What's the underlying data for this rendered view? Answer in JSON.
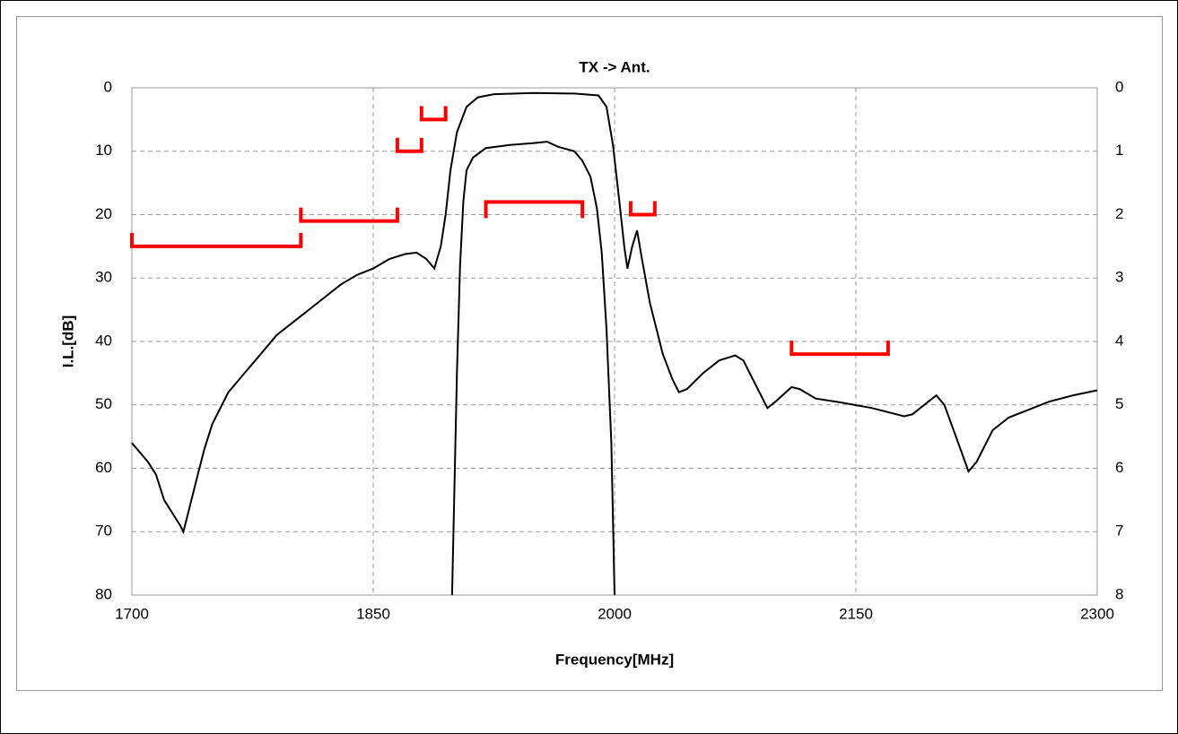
{
  "chart_data": {
    "type": "line",
    "title": "TX -> Ant.",
    "xlabel": "Frequency[MHz]",
    "ylabel": "I.L.[dB]",
    "xlim": [
      1700,
      2300
    ],
    "xticks": [
      1700,
      1850,
      2000,
      2150,
      2300
    ],
    "ylim": [
      80,
      0
    ],
    "yticks": [
      0,
      10,
      20,
      30,
      40,
      50,
      60,
      70,
      80
    ],
    "y2lim": [
      8,
      0
    ],
    "y2ticks": [
      0,
      1,
      2,
      3,
      4,
      5,
      6,
      7,
      8
    ],
    "grid": true,
    "series": [
      {
        "color": "#000000",
        "x": [
          1700,
          1710,
          1715,
          1720,
          1725,
          1730,
          1732,
          1735,
          1740,
          1745,
          1750,
          1760,
          1770,
          1780,
          1790,
          1800,
          1810,
          1820,
          1830,
          1840,
          1850,
          1860,
          1870,
          1877,
          1883,
          1888,
          1892,
          1895,
          1898,
          1902,
          1908,
          1915,
          1925,
          1950,
          1975,
          1990,
          1995,
          1999,
          2003,
          2006,
          2008,
          2011,
          2014,
          2017,
          2022,
          2030,
          2036,
          2040,
          2045,
          2055,
          2065,
          2075,
          2080,
          2088,
          2095,
          2100,
          2110,
          2115,
          2125,
          2140,
          2160,
          2180,
          2185,
          2195,
          2200,
          2205,
          2215,
          2220,
          2225,
          2235,
          2245,
          2255,
          2270,
          2285,
          2300
        ],
        "values": [
          56,
          59,
          61,
          65,
          67,
          69,
          70,
          67,
          62,
          57,
          53,
          48,
          45,
          42,
          39,
          37,
          35,
          33,
          31,
          29.5,
          28.5,
          27,
          26.2,
          26,
          27,
          28.5,
          25,
          20,
          13,
          7,
          3,
          1.5,
          1,
          0.8,
          0.9,
          1.2,
          3,
          9,
          18,
          25,
          28.5,
          25,
          22.5,
          27,
          34,
          42,
          46,
          48,
          47.5,
          45,
          43,
          42.2,
          43,
          47,
          50.5,
          49.5,
          47.2,
          47.5,
          49,
          49.6,
          50.5,
          51.8,
          51.5,
          49.5,
          48.5,
          50,
          57,
          60.5,
          59,
          54,
          52,
          51,
          49.5,
          48.5,
          47.7
        ]
      },
      {
        "color": "#000000",
        "axis": "y2",
        "x": [
          1899,
          1902,
          1904,
          1906,
          1908,
          1912,
          1920,
          1935,
          1950,
          1958,
          1965,
          1975,
          1980,
          1985,
          1989,
          1992,
          1995,
          1998,
          2000
        ],
        "values": [
          8,
          4.5,
          2.8,
          1.8,
          1.3,
          1.1,
          0.95,
          0.9,
          0.87,
          0.85,
          0.93,
          1.0,
          1.15,
          1.4,
          1.9,
          2.6,
          3.8,
          5.6,
          8
        ]
      }
    ],
    "limits_color": "#ff0000",
    "limits": [
      {
        "x": [
          1700,
          1805
        ],
        "value": 25
      },
      {
        "x": [
          1805,
          1865
        ],
        "value": 21
      },
      {
        "x": [
          1865,
          1880
        ],
        "value": 10
      },
      {
        "x": [
          1880,
          1895
        ],
        "value": 5
      },
      {
        "x": [
          1920,
          1980
        ],
        "value": 1.8,
        "axis": "y2"
      },
      {
        "x": [
          2010,
          2025
        ],
        "value": 20
      },
      {
        "x": [
          2110,
          2170
        ],
        "value": 42
      }
    ]
  }
}
